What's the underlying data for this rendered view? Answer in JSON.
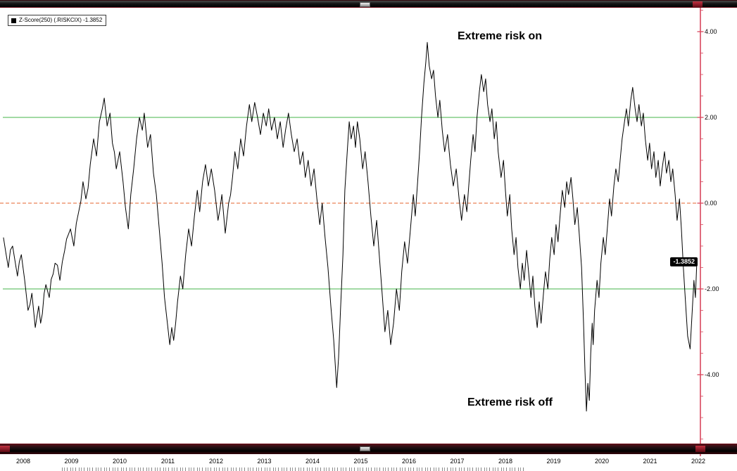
{
  "legend": {
    "label": "Z-Score(250) (.RISKCIX) -1.3852"
  },
  "annotations": {
    "risk_on": "Extreme risk on",
    "risk_off": "Extreme risk off"
  },
  "colors": {
    "series": "#000000",
    "band_line": "#45b649",
    "zero_line": "#e4632e",
    "axis_line": "#d9475e",
    "badge_bg": "#000000",
    "badge_text": "#ffffff"
  },
  "chart_data": {
    "type": "line",
    "title": "",
    "last_value": -1.3852,
    "last_value_label": "-1.3852",
    "reference_lines": {
      "upper": 2.0,
      "zero": 0.0,
      "lower": -2.0
    },
    "x_ticks": [
      "2008",
      "2009",
      "2010",
      "2011",
      "2012",
      "2013",
      "2014",
      "2015",
      "2016",
      "2017",
      "2018",
      "2019",
      "2020",
      "2021",
      "2022"
    ],
    "y_tick_values": [
      4,
      2,
      0,
      -2,
      -4
    ],
    "y_tick_labels": [
      "4.00",
      "2.00",
      "0.00",
      "-2.00",
      "-4.00"
    ],
    "xlim": [
      2007.55,
      2022.15
    ],
    "ylim": [
      -5.6,
      4.55
    ],
    "series": [
      {
        "name": "Z-Score(250) (.RISKCIX)",
        "points": [
          [
            2007.59,
            -0.8
          ],
          [
            2007.69,
            -1.5
          ],
          [
            2007.78,
            -1.0
          ],
          [
            2007.88,
            -1.7
          ],
          [
            2007.96,
            -1.2
          ],
          [
            2008.03,
            -1.8
          ],
          [
            2008.1,
            -2.5
          ],
          [
            2008.18,
            -2.1
          ],
          [
            2008.25,
            -2.9
          ],
          [
            2008.32,
            -2.4
          ],
          [
            2008.36,
            -2.8
          ],
          [
            2008.47,
            -1.9
          ],
          [
            2008.54,
            -2.2
          ],
          [
            2008.66,
            -1.4
          ],
          [
            2008.76,
            -1.8
          ],
          [
            2008.86,
            -1.1
          ],
          [
            2008.98,
            -0.6
          ],
          [
            2009.05,
            -1.0
          ],
          [
            2009.15,
            -0.2
          ],
          [
            2009.24,
            0.5
          ],
          [
            2009.3,
            0.1
          ],
          [
            2009.39,
            0.9
          ],
          [
            2009.46,
            1.5
          ],
          [
            2009.52,
            1.1
          ],
          [
            2009.58,
            1.9
          ],
          [
            2009.64,
            2.2
          ],
          [
            2009.68,
            2.45
          ],
          [
            2009.74,
            1.8
          ],
          [
            2009.8,
            2.1
          ],
          [
            2009.85,
            1.4
          ],
          [
            2009.93,
            0.8
          ],
          [
            2010.0,
            1.2
          ],
          [
            2010.07,
            0.5
          ],
          [
            2010.12,
            -0.1
          ],
          [
            2010.18,
            -0.6
          ],
          [
            2010.23,
            0.2
          ],
          [
            2010.29,
            0.8
          ],
          [
            2010.35,
            1.5
          ],
          [
            2010.41,
            2.0
          ],
          [
            2010.47,
            1.7
          ],
          [
            2010.51,
            2.1
          ],
          [
            2010.58,
            1.3
          ],
          [
            2010.64,
            1.6
          ],
          [
            2010.7,
            0.7
          ],
          [
            2010.76,
            0.2
          ],
          [
            2010.82,
            -0.6
          ],
          [
            2010.88,
            -1.4
          ],
          [
            2010.93,
            -2.2
          ],
          [
            2010.99,
            -2.8
          ],
          [
            2011.04,
            -3.3
          ],
          [
            2011.08,
            -2.9
          ],
          [
            2011.12,
            -3.2
          ],
          [
            2011.2,
            -2.3
          ],
          [
            2011.26,
            -1.7
          ],
          [
            2011.31,
            -2.0
          ],
          [
            2011.37,
            -1.2
          ],
          [
            2011.43,
            -0.6
          ],
          [
            2011.49,
            -1.0
          ],
          [
            2011.55,
            -0.3
          ],
          [
            2011.61,
            0.3
          ],
          [
            2011.66,
            -0.2
          ],
          [
            2011.72,
            0.5
          ],
          [
            2011.78,
            0.9
          ],
          [
            2011.84,
            0.4
          ],
          [
            2011.9,
            0.8
          ],
          [
            2011.97,
            0.3
          ],
          [
            2012.04,
            -0.4
          ],
          [
            2012.12,
            0.2
          ],
          [
            2012.19,
            -0.7
          ],
          [
            2012.26,
            0.0
          ],
          [
            2012.34,
            0.6
          ],
          [
            2012.39,
            1.2
          ],
          [
            2012.45,
            0.8
          ],
          [
            2012.51,
            1.5
          ],
          [
            2012.57,
            1.1
          ],
          [
            2012.63,
            1.8
          ],
          [
            2012.69,
            2.3
          ],
          [
            2012.74,
            1.9
          ],
          [
            2012.8,
            2.35
          ],
          [
            2012.86,
            2.0
          ],
          [
            2012.92,
            1.6
          ],
          [
            2012.98,
            2.1
          ],
          [
            2013.04,
            1.8
          ],
          [
            2013.09,
            2.2
          ],
          [
            2013.15,
            1.7
          ],
          [
            2013.21,
            2.0
          ],
          [
            2013.27,
            1.5
          ],
          [
            2013.33,
            1.9
          ],
          [
            2013.39,
            1.3
          ],
          [
            2013.44,
            1.7
          ],
          [
            2013.5,
            2.1
          ],
          [
            2013.56,
            1.6
          ],
          [
            2013.62,
            1.2
          ],
          [
            2013.68,
            1.5
          ],
          [
            2013.74,
            0.9
          ],
          [
            2013.8,
            1.2
          ],
          [
            2013.85,
            0.6
          ],
          [
            2013.91,
            1.0
          ],
          [
            2013.97,
            0.4
          ],
          [
            2014.03,
            0.8
          ],
          [
            2014.09,
            0.1
          ],
          [
            2014.15,
            -0.5
          ],
          [
            2014.2,
            0.0
          ],
          [
            2014.26,
            -0.8
          ],
          [
            2014.32,
            -1.5
          ],
          [
            2014.38,
            -2.4
          ],
          [
            2014.44,
            -3.2
          ],
          [
            2014.5,
            -4.3
          ],
          [
            2014.54,
            -3.6
          ],
          [
            2014.58,
            -2.5
          ],
          [
            2014.63,
            -1.2
          ],
          [
            2014.67,
            0.3
          ],
          [
            2014.72,
            1.2
          ],
          [
            2014.76,
            1.9
          ],
          [
            2014.8,
            1.5
          ],
          [
            2014.85,
            1.8
          ],
          [
            2014.89,
            1.3
          ],
          [
            2014.93,
            1.9
          ],
          [
            2014.98,
            1.5
          ],
          [
            2015.04,
            0.8
          ],
          [
            2015.09,
            1.2
          ],
          [
            2015.15,
            0.5
          ],
          [
            2015.21,
            -0.3
          ],
          [
            2015.27,
            -1.0
          ],
          [
            2015.33,
            -0.4
          ],
          [
            2015.39,
            -1.3
          ],
          [
            2015.45,
            -2.2
          ],
          [
            2015.5,
            -3.0
          ],
          [
            2015.56,
            -2.5
          ],
          [
            2015.62,
            -3.3
          ],
          [
            2015.68,
            -2.8
          ],
          [
            2015.74,
            -2.0
          ],
          [
            2015.8,
            -2.5
          ],
          [
            2015.85,
            -1.6
          ],
          [
            2015.91,
            -0.9
          ],
          [
            2015.97,
            -1.4
          ],
          [
            2016.03,
            -0.6
          ],
          [
            2016.09,
            0.2
          ],
          [
            2016.13,
            -0.3
          ],
          [
            2016.18,
            0.5
          ],
          [
            2016.22,
            1.2
          ],
          [
            2016.26,
            2.0
          ],
          [
            2016.31,
            2.8
          ],
          [
            2016.35,
            3.3
          ],
          [
            2016.38,
            3.75
          ],
          [
            2016.42,
            3.2
          ],
          [
            2016.47,
            2.9
          ],
          [
            2016.51,
            3.1
          ],
          [
            2016.55,
            2.5
          ],
          [
            2016.6,
            2.0
          ],
          [
            2016.64,
            2.4
          ],
          [
            2016.69,
            1.7
          ],
          [
            2016.74,
            1.2
          ],
          [
            2016.8,
            1.6
          ],
          [
            2016.86,
            0.9
          ],
          [
            2016.92,
            0.4
          ],
          [
            2016.98,
            0.8
          ],
          [
            2017.04,
            0.1
          ],
          [
            2017.09,
            -0.4
          ],
          [
            2017.15,
            0.2
          ],
          [
            2017.2,
            -0.2
          ],
          [
            2017.24,
            0.4
          ],
          [
            2017.28,
            1.0
          ],
          [
            2017.33,
            1.6
          ],
          [
            2017.37,
            1.2
          ],
          [
            2017.41,
            2.0
          ],
          [
            2017.46,
            2.6
          ],
          [
            2017.5,
            3.0
          ],
          [
            2017.55,
            2.6
          ],
          [
            2017.59,
            2.9
          ],
          [
            2017.63,
            2.3
          ],
          [
            2017.68,
            1.9
          ],
          [
            2017.72,
            2.2
          ],
          [
            2017.77,
            1.5
          ],
          [
            2017.81,
            1.9
          ],
          [
            2017.85,
            1.2
          ],
          [
            2017.91,
            0.6
          ],
          [
            2017.96,
            1.0
          ],
          [
            2018.0,
            0.3
          ],
          [
            2018.04,
            -0.3
          ],
          [
            2018.09,
            0.2
          ],
          [
            2018.13,
            -0.6
          ],
          [
            2018.18,
            -1.2
          ],
          [
            2018.22,
            -0.8
          ],
          [
            2018.26,
            -1.5
          ],
          [
            2018.31,
            -2.0
          ],
          [
            2018.35,
            -1.4
          ],
          [
            2018.39,
            -1.8
          ],
          [
            2018.44,
            -1.1
          ],
          [
            2018.48,
            -1.6
          ],
          [
            2018.53,
            -2.2
          ],
          [
            2018.57,
            -1.7
          ],
          [
            2018.61,
            -2.4
          ],
          [
            2018.66,
            -2.9
          ],
          [
            2018.7,
            -2.3
          ],
          [
            2018.74,
            -2.8
          ],
          [
            2018.79,
            -2.1
          ],
          [
            2018.83,
            -1.6
          ],
          [
            2018.88,
            -2.0
          ],
          [
            2018.92,
            -1.3
          ],
          [
            2018.96,
            -0.8
          ],
          [
            2019.01,
            -1.2
          ],
          [
            2019.05,
            -0.5
          ],
          [
            2019.09,
            -0.9
          ],
          [
            2019.14,
            -0.2
          ],
          [
            2019.18,
            0.3
          ],
          [
            2019.23,
            -0.1
          ],
          [
            2019.27,
            0.5
          ],
          [
            2019.31,
            0.2
          ],
          [
            2019.36,
            0.6
          ],
          [
            2019.4,
            0.1
          ],
          [
            2019.44,
            -0.5
          ],
          [
            2019.49,
            -0.1
          ],
          [
            2019.53,
            -0.7
          ],
          [
            2019.58,
            -1.5
          ],
          [
            2019.62,
            -2.8
          ],
          [
            2019.65,
            -3.9
          ],
          [
            2019.68,
            -4.85
          ],
          [
            2019.71,
            -4.2
          ],
          [
            2019.74,
            -4.6
          ],
          [
            2019.77,
            -3.5
          ],
          [
            2019.8,
            -2.8
          ],
          [
            2019.82,
            -3.3
          ],
          [
            2019.85,
            -2.5
          ],
          [
            2019.9,
            -1.8
          ],
          [
            2019.94,
            -2.2
          ],
          [
            2019.98,
            -1.4
          ],
          [
            2020.03,
            -0.8
          ],
          [
            2020.07,
            -1.2
          ],
          [
            2020.12,
            -0.5
          ],
          [
            2020.16,
            0.1
          ],
          [
            2020.2,
            -0.3
          ],
          [
            2020.25,
            0.4
          ],
          [
            2020.29,
            0.8
          ],
          [
            2020.34,
            0.5
          ],
          [
            2020.38,
            1.0
          ],
          [
            2020.42,
            1.5
          ],
          [
            2020.47,
            1.9
          ],
          [
            2020.51,
            2.2
          ],
          [
            2020.55,
            1.8
          ],
          [
            2020.6,
            2.4
          ],
          [
            2020.64,
            2.7
          ],
          [
            2020.69,
            2.2
          ],
          [
            2020.73,
            1.9
          ],
          [
            2020.77,
            2.3
          ],
          [
            2020.82,
            1.8
          ],
          [
            2020.86,
            2.1
          ],
          [
            2020.9,
            1.5
          ],
          [
            2020.95,
            1.0
          ],
          [
            2020.99,
            1.4
          ],
          [
            2021.03,
            0.8
          ],
          [
            2021.08,
            1.2
          ],
          [
            2021.12,
            0.6
          ],
          [
            2021.17,
            1.0
          ],
          [
            2021.21,
            0.4
          ],
          [
            2021.25,
            0.8
          ],
          [
            2021.3,
            1.2
          ],
          [
            2021.34,
            0.7
          ],
          [
            2021.39,
            1.0
          ],
          [
            2021.43,
            0.5
          ],
          [
            2021.47,
            0.8
          ],
          [
            2021.52,
            0.2
          ],
          [
            2021.56,
            -0.4
          ],
          [
            2021.61,
            0.1
          ],
          [
            2021.65,
            -0.6
          ],
          [
            2021.69,
            -1.5
          ],
          [
            2021.74,
            -2.4
          ],
          [
            2021.78,
            -3.1
          ],
          [
            2021.83,
            -3.4
          ],
          [
            2021.87,
            -2.6
          ],
          [
            2021.91,
            -1.8
          ],
          [
            2021.94,
            -2.2
          ],
          [
            2021.97,
            -1.3852
          ]
        ]
      }
    ]
  }
}
